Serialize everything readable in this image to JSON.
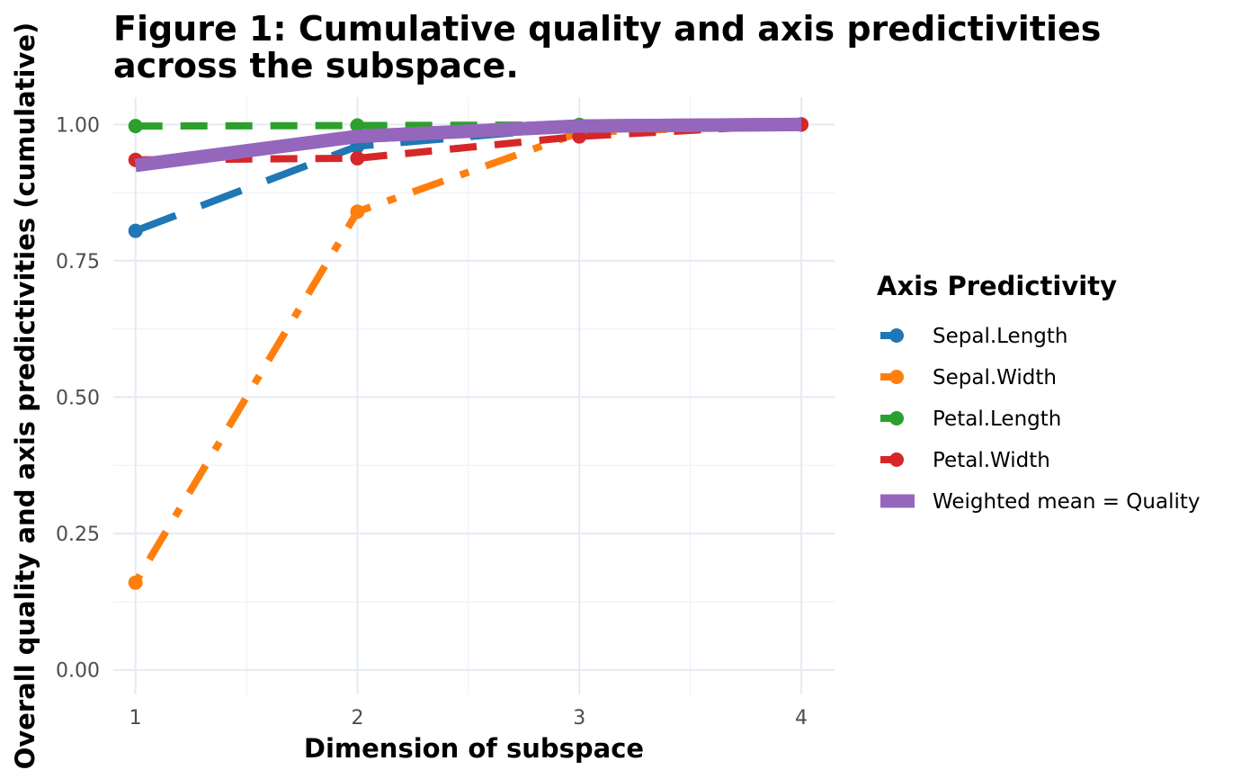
{
  "chart_data": {
    "type": "line",
    "title": "Figure 1: Cumulative quality and axis predictivities across the subspace.",
    "title_lines": [
      "Figure 1: Cumulative quality and axis predictivities",
      "across the subspace."
    ],
    "xlabel": "Dimension of subspace",
    "ylabel": "Overall quality and axis predictivities (cumulative)",
    "x": [
      1,
      2,
      3,
      4
    ],
    "xlim": [
      0.9,
      4.15
    ],
    "ylim": [
      -0.045,
      1.05
    ],
    "x_ticks": [
      1,
      2,
      3,
      4
    ],
    "x_tick_labels": [
      "1",
      "2",
      "3",
      "4"
    ],
    "y_ticks": [
      0,
      0.25,
      0.5,
      0.75,
      1.0
    ],
    "y_tick_labels": [
      "0.00",
      "0.25",
      "0.50",
      "0.75",
      "1.00"
    ],
    "grid": true,
    "legend_title": "Axis Predictivity",
    "legend_position": "right",
    "series": [
      {
        "name": "Sepal.Length",
        "values": [
          0.805,
          0.96,
          0.995,
          1.0
        ],
        "color": "#1f77b4",
        "dash": "longdash",
        "markers": true
      },
      {
        "name": "Sepal.Width",
        "values": [
          0.16,
          0.84,
          0.985,
          1.0
        ],
        "color": "#ff7f0e",
        "dash": "dotdash",
        "markers": true
      },
      {
        "name": "Petal.Length",
        "values": [
          0.997,
          0.998,
          0.999,
          1.0
        ],
        "color": "#2ca02c",
        "dash": "dashed",
        "markers": true
      },
      {
        "name": "Petal.Width",
        "values": [
          0.935,
          0.938,
          0.978,
          1.0
        ],
        "color": "#d62728",
        "dash": "dashed",
        "markers": true
      },
      {
        "name": "Weighted mean = Quality",
        "values": [
          0.925,
          0.978,
          0.997,
          1.0
        ],
        "color": "#9467bd",
        "dash": "solid",
        "markers": false
      }
    ]
  }
}
